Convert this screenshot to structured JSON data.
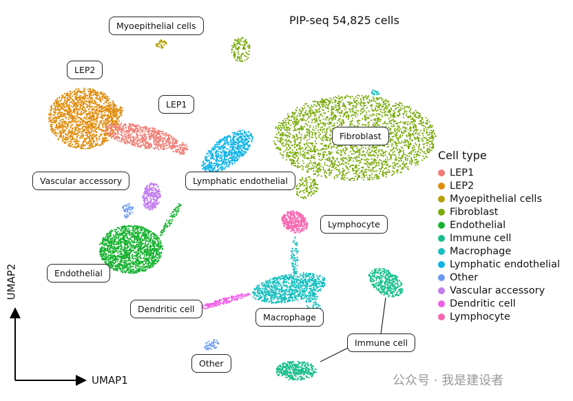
{
  "chart_data": {
    "type": "scatter",
    "title": "PIP-seq 54,825 cells",
    "xlabel": "UMAP1",
    "ylabel": "UMAP2",
    "legend_title": "Cell type",
    "legend_position": "right",
    "grid": false,
    "categories": [
      {
        "name": "LEP1",
        "color": "#f07b72"
      },
      {
        "name": "LEP2",
        "color": "#e08b0b"
      },
      {
        "name": "Myoepithelial cells",
        "color": "#b8a00a"
      },
      {
        "name": "Fibroblast",
        "color": "#7aab0c"
      },
      {
        "name": "Endothelial",
        "color": "#17b22f"
      },
      {
        "name": "Immune cell",
        "color": "#17bf8a"
      },
      {
        "name": "Macrophage",
        "color": "#17bfbf"
      },
      {
        "name": "Lymphatic endothelial",
        "color": "#10b3ea"
      },
      {
        "name": "Other",
        "color": "#6b9bf0"
      },
      {
        "name": "Vascular accessory",
        "color": "#c27cf0"
      },
      {
        "name": "Dendritic cell",
        "color": "#f060e6"
      },
      {
        "name": "Lymphocyte",
        "color": "#f766b0"
      }
    ],
    "annotations": [
      "Myoepithelial cells",
      "LEP2",
      "LEP1",
      "Fibroblast",
      "Vascular accessory",
      "Lymphatic endothelial",
      "Lymphocyte",
      "Endothelial",
      "Dendritic cell",
      "Macrophage",
      "Immune cell",
      "Other"
    ]
  },
  "watermark": "公众号 · 我是建设者"
}
